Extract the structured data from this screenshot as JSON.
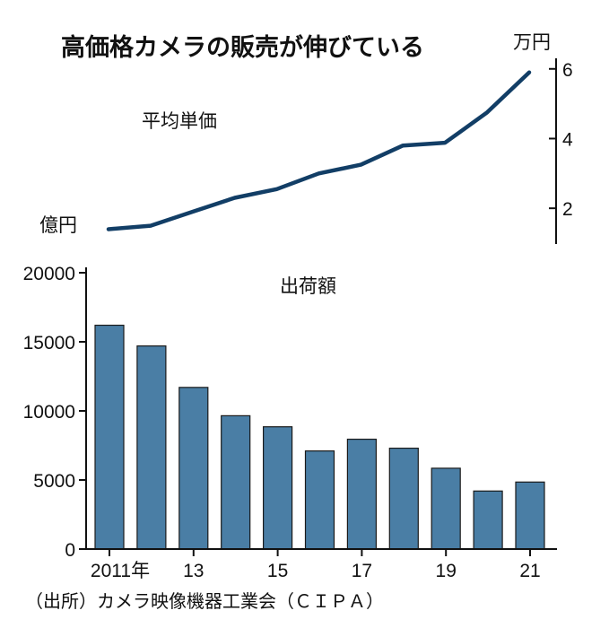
{
  "title": "高価格カメラの販売が伸びている",
  "source": "（出所）カメラ映像機器工業会（ＣＩＰＡ）",
  "chart_data": [
    {
      "type": "line",
      "name": "平均単価",
      "unit_label": "万円",
      "x": [
        "2011",
        "2012",
        "2013",
        "2014",
        "2015",
        "2016",
        "2017",
        "2018",
        "2019",
        "2020",
        "2021"
      ],
      "values": [
        1.4,
        1.5,
        1.9,
        2.3,
        2.55,
        3.0,
        3.25,
        3.8,
        3.88,
        4.75,
        5.9
      ],
      "yticks": [
        2,
        4,
        6
      ],
      "ylim": [
        1.0,
        6.2
      ],
      "axis_side": "right"
    },
    {
      "type": "bar",
      "name": "出荷額",
      "unit_label": "億円",
      "categories": [
        "2011",
        "2012",
        "2013",
        "2014",
        "2015",
        "2016",
        "2017",
        "2018",
        "2019",
        "2020",
        "2021"
      ],
      "values": [
        16200,
        14700,
        11700,
        9650,
        8850,
        7100,
        7950,
        7300,
        5850,
        4200,
        4850
      ],
      "yticks": [
        0,
        5000,
        10000,
        15000,
        20000
      ],
      "ylim": [
        0,
        20000
      ],
      "xtick_labels": [
        "2011年",
        "13",
        "15",
        "17",
        "19",
        "21"
      ],
      "axis_side": "left"
    }
  ]
}
